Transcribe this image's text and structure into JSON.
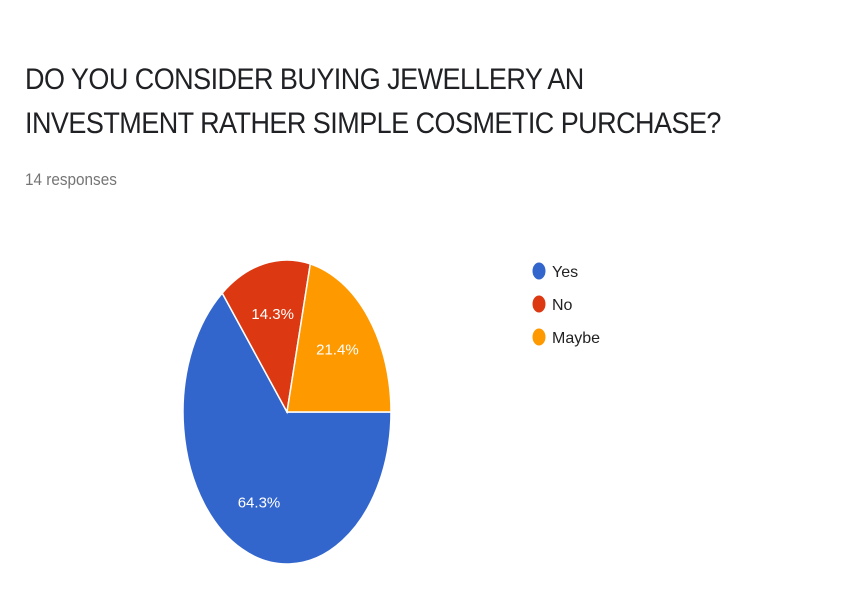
{
  "header": {
    "title": "DO YOU CONSIDER BUYING JEWELLERY AN INVESTMENT RATHER SIMPLE COSMETIC PURCHASE?",
    "responses": "14 responses"
  },
  "chart_data": {
    "type": "pie",
    "title": "DO YOU CONSIDER BUYING JEWELLERY AN INVESTMENT RATHER SIMPLE COSMETIC PURCHASE?",
    "slices": [
      {
        "label": "Yes",
        "value": 64.3,
        "display": "64.3%",
        "color": "#3366cc"
      },
      {
        "label": "No",
        "value": 14.3,
        "display": "14.3%",
        "color": "#dc3912"
      },
      {
        "label": "Maybe",
        "value": 21.4,
        "display": "21.4%",
        "color": "#ff9900"
      }
    ],
    "legend_position": "right"
  }
}
